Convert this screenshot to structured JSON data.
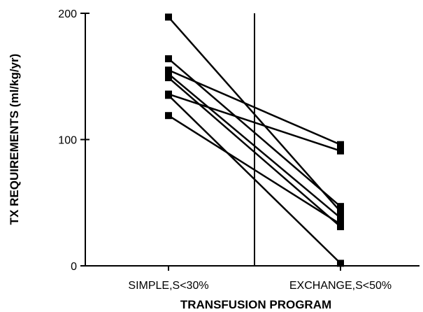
{
  "chart_data": {
    "type": "line",
    "xlabel": "TRANSFUSION PROGRAM",
    "ylabel": "TX REQUIREMENTS (ml/kg/yr)",
    "categories": [
      "SIMPLE,S<30%",
      "EXCHANGE,S<50%"
    ],
    "ylim": [
      0,
      200
    ],
    "yticks": [
      0,
      100,
      200
    ],
    "ytick_labels": [
      "0",
      "100",
      "200"
    ],
    "grid": false,
    "divider_between_categories": true,
    "marker": "square",
    "line_color": "#000000",
    "series": [
      {
        "values": [
          197,
          43
        ]
      },
      {
        "values": [
          164,
          47
        ]
      },
      {
        "values": [
          155,
          96
        ]
      },
      {
        "values": [
          152,
          38
        ]
      },
      {
        "values": [
          149,
          31
        ]
      },
      {
        "values": [
          136,
          91
        ]
      },
      {
        "values": [
          135,
          2
        ]
      },
      {
        "values": [
          119,
          33
        ]
      }
    ]
  }
}
